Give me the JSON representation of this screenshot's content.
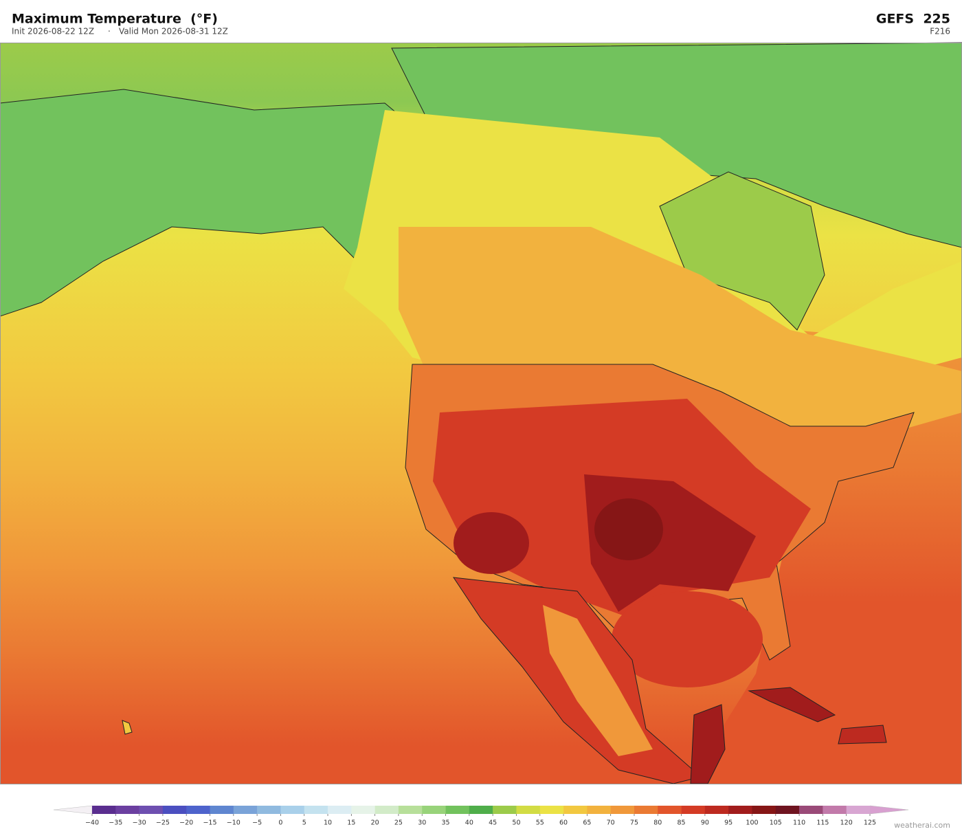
{
  "header": {
    "title": "Maximum Temperature  (°F)",
    "init": "Init 2026-08-22 12Z",
    "separator": "·",
    "valid": "Valid Mon 2026-08-31 12Z",
    "model": "GEFS  225",
    "forecast_hour": "F216"
  },
  "colorbar": {
    "ticks": [
      {
        "value": -40,
        "label": "−40"
      },
      {
        "value": -35,
        "label": "−35"
      },
      {
        "value": -30,
        "label": "−30"
      },
      {
        "value": -25,
        "label": "−25"
      },
      {
        "value": -20,
        "label": "−20"
      },
      {
        "value": -15,
        "label": "−15"
      },
      {
        "value": -10,
        "label": "−10"
      },
      {
        "value": -5,
        "label": "−5"
      },
      0,
      5,
      10,
      15,
      20,
      25,
      30,
      35,
      40,
      45,
      50,
      55,
      60,
      65,
      70,
      75,
      80,
      85,
      90,
      95,
      100,
      105,
      110,
      115,
      120,
      125
    ],
    "colors": [
      "#5a2e8f",
      "#6b3fa0",
      "#6e4fb0",
      "#4b4fc0",
      "#4e63cc",
      "#5f86d0",
      "#7aa3d8",
      "#90badf",
      "#a9d0ea",
      "#c4e2ef",
      "#dcedf3",
      "#e6f3e8",
      "#d2ebc8",
      "#b7df9a",
      "#98d37a",
      "#72c25d",
      "#4fae4a",
      "#9ccb4a",
      "#d2dc44",
      "#ebe245",
      "#f2c840",
      "#f2b23e",
      "#f0983a",
      "#ea7a33",
      "#e2552b",
      "#d43b25",
      "#bd2a20",
      "#a11c1c",
      "#861616",
      "#6f1420",
      "#9a4a78",
      "#c27aaa",
      "#d8a6d2"
    ],
    "under_color": "#f4f0f4",
    "over_color": "#d8a0d0"
  },
  "footer": {
    "credit": "weatherai.com"
  }
}
